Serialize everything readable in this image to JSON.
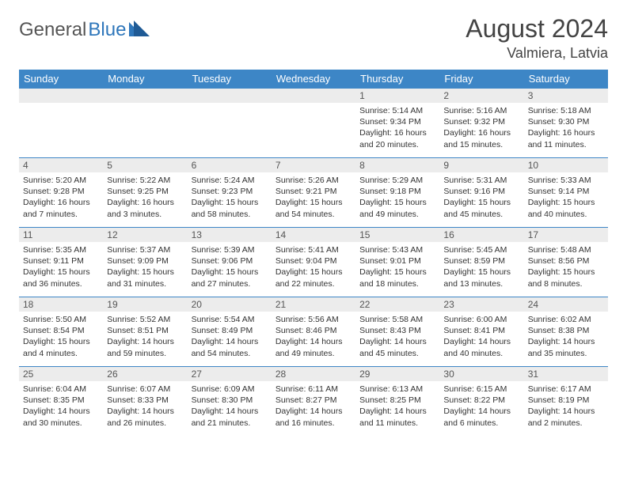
{
  "logo": {
    "word1": "General",
    "word2": "Blue"
  },
  "title": "August 2024",
  "location": "Valmiera, Latvia",
  "colors": {
    "header_bg": "#3d86c6",
    "header_text": "#ffffff",
    "row_divider": "#3d86c6",
    "daynum_bg": "#ececec",
    "text": "#333333",
    "logo_gray": "#555555",
    "logo_blue": "#2f77bb",
    "page_bg": "#ffffff"
  },
  "weekdays": [
    "Sunday",
    "Monday",
    "Tuesday",
    "Wednesday",
    "Thursday",
    "Friday",
    "Saturday"
  ],
  "weeks": [
    [
      null,
      null,
      null,
      null,
      {
        "n": "1",
        "sr": "Sunrise: 5:14 AM",
        "ss": "Sunset: 9:34 PM",
        "dl": "Daylight: 16 hours and 20 minutes."
      },
      {
        "n": "2",
        "sr": "Sunrise: 5:16 AM",
        "ss": "Sunset: 9:32 PM",
        "dl": "Daylight: 16 hours and 15 minutes."
      },
      {
        "n": "3",
        "sr": "Sunrise: 5:18 AM",
        "ss": "Sunset: 9:30 PM",
        "dl": "Daylight: 16 hours and 11 minutes."
      }
    ],
    [
      {
        "n": "4",
        "sr": "Sunrise: 5:20 AM",
        "ss": "Sunset: 9:28 PM",
        "dl": "Daylight: 16 hours and 7 minutes."
      },
      {
        "n": "5",
        "sr": "Sunrise: 5:22 AM",
        "ss": "Sunset: 9:25 PM",
        "dl": "Daylight: 16 hours and 3 minutes."
      },
      {
        "n": "6",
        "sr": "Sunrise: 5:24 AM",
        "ss": "Sunset: 9:23 PM",
        "dl": "Daylight: 15 hours and 58 minutes."
      },
      {
        "n": "7",
        "sr": "Sunrise: 5:26 AM",
        "ss": "Sunset: 9:21 PM",
        "dl": "Daylight: 15 hours and 54 minutes."
      },
      {
        "n": "8",
        "sr": "Sunrise: 5:29 AM",
        "ss": "Sunset: 9:18 PM",
        "dl": "Daylight: 15 hours and 49 minutes."
      },
      {
        "n": "9",
        "sr": "Sunrise: 5:31 AM",
        "ss": "Sunset: 9:16 PM",
        "dl": "Daylight: 15 hours and 45 minutes."
      },
      {
        "n": "10",
        "sr": "Sunrise: 5:33 AM",
        "ss": "Sunset: 9:14 PM",
        "dl": "Daylight: 15 hours and 40 minutes."
      }
    ],
    [
      {
        "n": "11",
        "sr": "Sunrise: 5:35 AM",
        "ss": "Sunset: 9:11 PM",
        "dl": "Daylight: 15 hours and 36 minutes."
      },
      {
        "n": "12",
        "sr": "Sunrise: 5:37 AM",
        "ss": "Sunset: 9:09 PM",
        "dl": "Daylight: 15 hours and 31 minutes."
      },
      {
        "n": "13",
        "sr": "Sunrise: 5:39 AM",
        "ss": "Sunset: 9:06 PM",
        "dl": "Daylight: 15 hours and 27 minutes."
      },
      {
        "n": "14",
        "sr": "Sunrise: 5:41 AM",
        "ss": "Sunset: 9:04 PM",
        "dl": "Daylight: 15 hours and 22 minutes."
      },
      {
        "n": "15",
        "sr": "Sunrise: 5:43 AM",
        "ss": "Sunset: 9:01 PM",
        "dl": "Daylight: 15 hours and 18 minutes."
      },
      {
        "n": "16",
        "sr": "Sunrise: 5:45 AM",
        "ss": "Sunset: 8:59 PM",
        "dl": "Daylight: 15 hours and 13 minutes."
      },
      {
        "n": "17",
        "sr": "Sunrise: 5:48 AM",
        "ss": "Sunset: 8:56 PM",
        "dl": "Daylight: 15 hours and 8 minutes."
      }
    ],
    [
      {
        "n": "18",
        "sr": "Sunrise: 5:50 AM",
        "ss": "Sunset: 8:54 PM",
        "dl": "Daylight: 15 hours and 4 minutes."
      },
      {
        "n": "19",
        "sr": "Sunrise: 5:52 AM",
        "ss": "Sunset: 8:51 PM",
        "dl": "Daylight: 14 hours and 59 minutes."
      },
      {
        "n": "20",
        "sr": "Sunrise: 5:54 AM",
        "ss": "Sunset: 8:49 PM",
        "dl": "Daylight: 14 hours and 54 minutes."
      },
      {
        "n": "21",
        "sr": "Sunrise: 5:56 AM",
        "ss": "Sunset: 8:46 PM",
        "dl": "Daylight: 14 hours and 49 minutes."
      },
      {
        "n": "22",
        "sr": "Sunrise: 5:58 AM",
        "ss": "Sunset: 8:43 PM",
        "dl": "Daylight: 14 hours and 45 minutes."
      },
      {
        "n": "23",
        "sr": "Sunrise: 6:00 AM",
        "ss": "Sunset: 8:41 PM",
        "dl": "Daylight: 14 hours and 40 minutes."
      },
      {
        "n": "24",
        "sr": "Sunrise: 6:02 AM",
        "ss": "Sunset: 8:38 PM",
        "dl": "Daylight: 14 hours and 35 minutes."
      }
    ],
    [
      {
        "n": "25",
        "sr": "Sunrise: 6:04 AM",
        "ss": "Sunset: 8:35 PM",
        "dl": "Daylight: 14 hours and 30 minutes."
      },
      {
        "n": "26",
        "sr": "Sunrise: 6:07 AM",
        "ss": "Sunset: 8:33 PM",
        "dl": "Daylight: 14 hours and 26 minutes."
      },
      {
        "n": "27",
        "sr": "Sunrise: 6:09 AM",
        "ss": "Sunset: 8:30 PM",
        "dl": "Daylight: 14 hours and 21 minutes."
      },
      {
        "n": "28",
        "sr": "Sunrise: 6:11 AM",
        "ss": "Sunset: 8:27 PM",
        "dl": "Daylight: 14 hours and 16 minutes."
      },
      {
        "n": "29",
        "sr": "Sunrise: 6:13 AM",
        "ss": "Sunset: 8:25 PM",
        "dl": "Daylight: 14 hours and 11 minutes."
      },
      {
        "n": "30",
        "sr": "Sunrise: 6:15 AM",
        "ss": "Sunset: 8:22 PM",
        "dl": "Daylight: 14 hours and 6 minutes."
      },
      {
        "n": "31",
        "sr": "Sunrise: 6:17 AM",
        "ss": "Sunset: 8:19 PM",
        "dl": "Daylight: 14 hours and 2 minutes."
      }
    ]
  ]
}
